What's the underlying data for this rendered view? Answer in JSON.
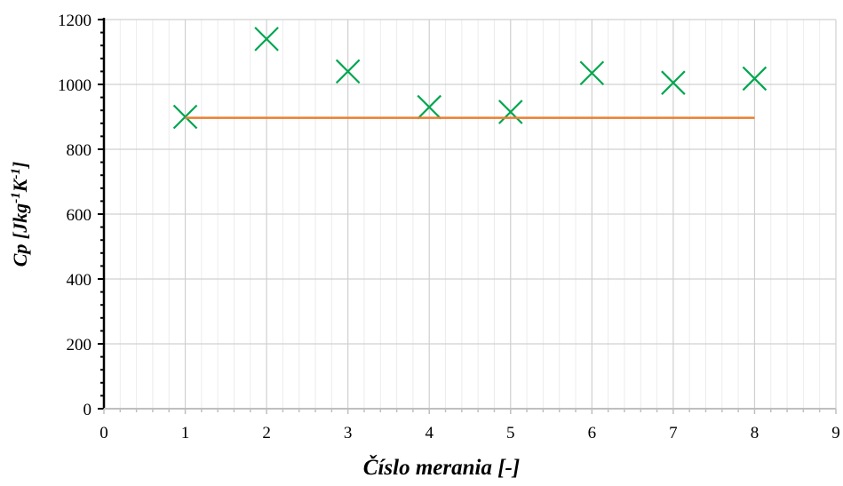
{
  "chart_data": {
    "type": "scatter",
    "title": "",
    "xlabel": "Číslo merania [-]",
    "ylabel": {
      "text": "Cp [Jkg-1K-1]",
      "parts": [
        {
          "text": "Cp [Jkg",
          "sup": false
        },
        {
          "text": "-1",
          "sup": true
        },
        {
          "text": "K",
          "sup": false
        },
        {
          "text": "-1",
          "sup": true
        },
        {
          "text": "]",
          "sup": false
        }
      ]
    },
    "xlim": [
      0,
      9
    ],
    "ylim": [
      0,
      1200
    ],
    "xticks": [
      0,
      1,
      2,
      3,
      4,
      5,
      6,
      7,
      8,
      9
    ],
    "yticks": [
      0,
      200,
      400,
      600,
      800,
      1000,
      1200
    ],
    "grid": true,
    "legend": "none",
    "series": [
      {
        "type": "scatter",
        "marker": "x",
        "color": "#00a64f",
        "x": [
          1,
          2,
          3,
          4,
          5,
          6,
          7,
          8
        ],
        "y": [
          900,
          1140,
          1040,
          930,
          915,
          1035,
          1005,
          1018
        ]
      },
      {
        "type": "line",
        "color": "#ed7d31",
        "x": [
          1,
          8
        ],
        "y": [
          897,
          897
        ]
      }
    ]
  }
}
